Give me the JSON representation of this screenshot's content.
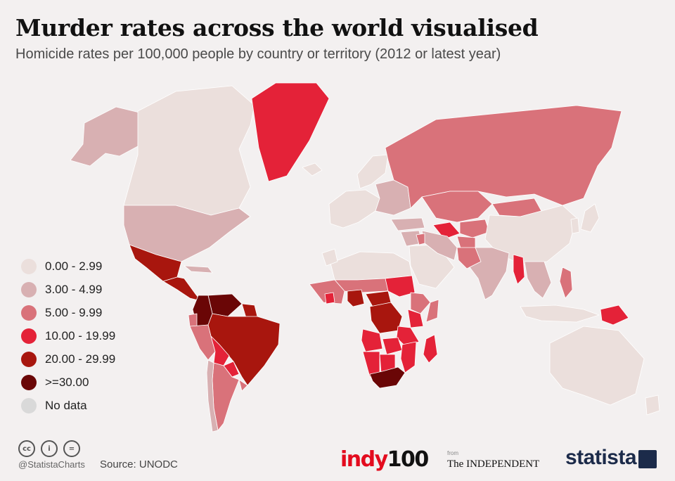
{
  "header": {
    "title": "Murder rates across the world visualised",
    "subtitle": "Homicide rates per 100,000 people by country or territory (2012 or latest year)"
  },
  "legend": [
    {
      "label": "0.00 - 2.99",
      "color": "#ebdfdc"
    },
    {
      "label": "3.00 - 4.99",
      "color": "#d8b0b2"
    },
    {
      "label": "5.00 - 9.99",
      "color": "#d9727a"
    },
    {
      "label": "10.00 - 19.99",
      "color": "#e42238"
    },
    {
      "label": "20.00 - 29.99",
      "color": "#a8160e"
    },
    {
      "label": ">=30.00",
      "color": "#6a0606"
    },
    {
      "label": "No data",
      "color": "#d9d9d9"
    }
  ],
  "footer": {
    "handle": "@StatistaCharts",
    "source": "Source: UNODC",
    "indy_part1": "indy",
    "indy_part2": "100",
    "from": "from",
    "independent": "The INDEPENDENT",
    "statista": "statista",
    "icons": [
      "cc-icon",
      "by-icon",
      "nd-icon"
    ]
  },
  "map": {
    "regions": [
      {
        "name": "Alaska",
        "bin": 1
      },
      {
        "name": "Canada",
        "bin": 0
      },
      {
        "name": "Greenland",
        "bin": 3
      },
      {
        "name": "Iceland",
        "bin": 0
      },
      {
        "name": "United States",
        "bin": 1
      },
      {
        "name": "Mexico",
        "bin": 4
      },
      {
        "name": "Central America",
        "bin": 4
      },
      {
        "name": "Cuba",
        "bin": 1
      },
      {
        "name": "Venezuela",
        "bin": 5
      },
      {
        "name": "Colombia",
        "bin": 5
      },
      {
        "name": "Guyana",
        "bin": 4
      },
      {
        "name": "Brazil",
        "bin": 4
      },
      {
        "name": "Ecuador",
        "bin": 2
      },
      {
        "name": "Peru",
        "bin": 2
      },
      {
        "name": "Bolivia",
        "bin": 3
      },
      {
        "name": "Paraguay",
        "bin": 3
      },
      {
        "name": "Argentina",
        "bin": 2
      },
      {
        "name": "Chile",
        "bin": 1
      },
      {
        "name": "Uruguay",
        "bin": 2
      },
      {
        "name": "Western Europe",
        "bin": 0
      },
      {
        "name": "Scandinavia",
        "bin": 0
      },
      {
        "name": "Eastern Europe",
        "bin": 1
      },
      {
        "name": "Russia",
        "bin": 2
      },
      {
        "name": "Kazakhstan",
        "bin": 2
      },
      {
        "name": "Turkmenistan",
        "bin": 3
      },
      {
        "name": "Central Asia",
        "bin": 2
      },
      {
        "name": "Mongolia",
        "bin": 2
      },
      {
        "name": "China",
        "bin": 0
      },
      {
        "name": "Japan",
        "bin": 0
      },
      {
        "name": "Korea",
        "bin": 0
      },
      {
        "name": "Turkey",
        "bin": 1
      },
      {
        "name": "Middle East",
        "bin": 1
      },
      {
        "name": "Arabia",
        "bin": 0
      },
      {
        "name": "Iran",
        "bin": 1
      },
      {
        "name": "Iraq",
        "bin": 2
      },
      {
        "name": "Afghanistan",
        "bin": 2
      },
      {
        "name": "Pakistan",
        "bin": 2
      },
      {
        "name": "India",
        "bin": 1
      },
      {
        "name": "Myanmar",
        "bin": 3
      },
      {
        "name": "Southeast Asia",
        "bin": 1
      },
      {
        "name": "Philippines",
        "bin": 2
      },
      {
        "name": "Indonesia",
        "bin": 0
      },
      {
        "name": "Papua New Guinea",
        "bin": 3
      },
      {
        "name": "Australia",
        "bin": 0
      },
      {
        "name": "New Zealand",
        "bin": 0
      },
      {
        "name": "North Africa",
        "bin": 0
      },
      {
        "name": "Morocco",
        "bin": 0
      },
      {
        "name": "Sahel",
        "bin": 2
      },
      {
        "name": "West Africa",
        "bin": 2
      },
      {
        "name": "Ivory Coast",
        "bin": 3
      },
      {
        "name": "Nigeria",
        "bin": 4
      },
      {
        "name": "Sudan",
        "bin": 3
      },
      {
        "name": "Ethiopia",
        "bin": 2
      },
      {
        "name": "Somalia",
        "bin": 2
      },
      {
        "name": "Central African Rep.",
        "bin": 4
      },
      {
        "name": "DR Congo",
        "bin": 4
      },
      {
        "name": "Kenya",
        "bin": 3
      },
      {
        "name": "Tanzania",
        "bin": 3
      },
      {
        "name": "Angola",
        "bin": 3
      },
      {
        "name": "Zambia",
        "bin": 3
      },
      {
        "name": "Mozambique",
        "bin": 3
      },
      {
        "name": "Namibia",
        "bin": 3
      },
      {
        "name": "Botswana",
        "bin": 3
      },
      {
        "name": "South Africa",
        "bin": 5
      },
      {
        "name": "Madagascar",
        "bin": 3
      }
    ]
  }
}
